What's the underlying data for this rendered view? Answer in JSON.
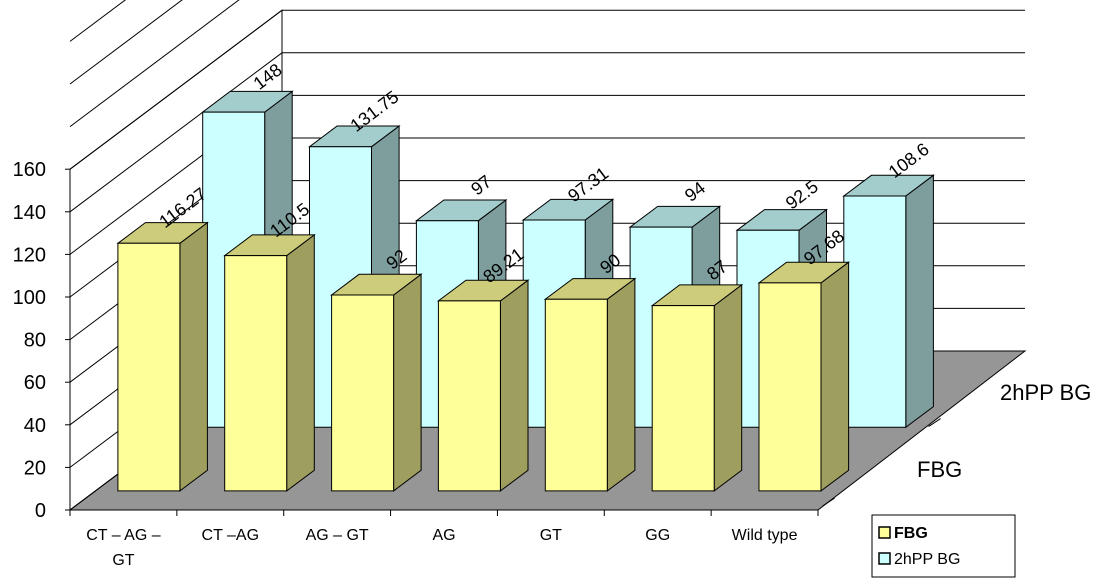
{
  "chart_data": {
    "type": "bar",
    "categories": [
      "CT – AG – GT",
      "CT –AG",
      "AG – GT",
      "AG",
      "GT",
      "GG",
      "Wild type"
    ],
    "category_labels": [
      [
        "CT – AG –",
        "GT"
      ],
      [
        "CT –AG"
      ],
      [
        "AG – GT"
      ],
      [
        "AG"
      ],
      [
        "GT"
      ],
      [
        "GG"
      ],
      [
        "Wild type"
      ]
    ],
    "series": [
      {
        "name": "FBG",
        "values": [
          116.27,
          110.5,
          92,
          89.21,
          90,
          87,
          97.68
        ],
        "value_labels": [
          "116.27",
          "110.5",
          "92",
          "89.21",
          "90",
          "87",
          "97.68"
        ],
        "color": "#ffff99"
      },
      {
        "name": "2hPP BG",
        "values": [
          148,
          131.75,
          97,
          97.31,
          94,
          92.5,
          108.6
        ],
        "value_labels": [
          "148",
          "131.75",
          "97",
          "97.31",
          "94",
          "92.5",
          "108.6"
        ],
        "color": "#ccffff"
      }
    ],
    "depth_labels": [
      "FBG",
      "2hPP BG"
    ],
    "yticks": [
      "0",
      "20",
      "40",
      "60",
      "80",
      "100",
      "120",
      "140",
      "160"
    ],
    "ylim": [
      0,
      160
    ],
    "grid": true,
    "legend_position": "bottom-right",
    "style": "3d-clustered-depth",
    "floor_color": "#969696"
  }
}
